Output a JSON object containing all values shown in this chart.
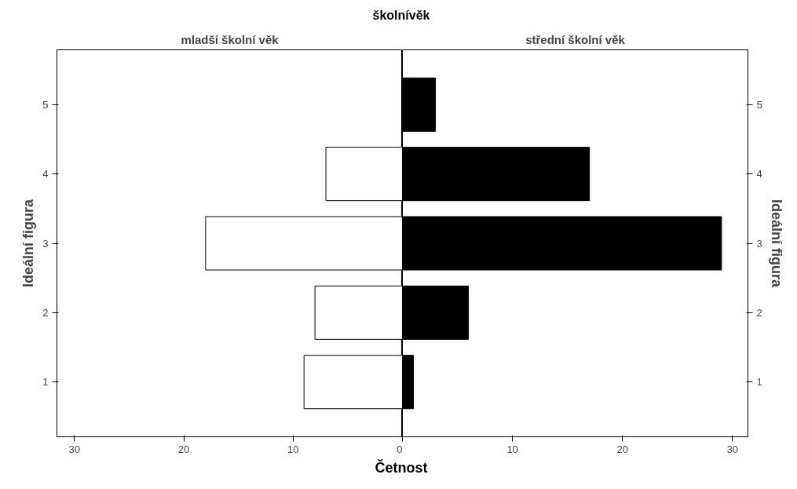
{
  "chart_data": [
    {
      "type": "bar",
      "orientation": "horizontal",
      "title": "mladší školní věk",
      "annotations": [
        "školnívěk"
      ],
      "xlabel": "Četnost",
      "ylabel": "Ideální figura",
      "categories": [
        "5",
        "4",
        "3",
        "2",
        "1"
      ],
      "values": [
        null,
        7,
        18,
        8,
        9
      ],
      "color": "#ffffff",
      "xlim": [
        31.6,
        0
      ],
      "xticks": [
        30,
        20,
        10,
        0
      ]
    },
    {
      "type": "bar",
      "orientation": "horizontal",
      "title": "střední školní věk",
      "y2label": "Ideální figura",
      "categories": [
        "5",
        "4",
        "3",
        "2",
        "1"
      ],
      "values": [
        3,
        17,
        29,
        6,
        1
      ],
      "color": "#000000",
      "xlim": [
        0,
        31.4
      ],
      "xticks": [
        {
          "value": 0,
          "label": null
        },
        10,
        20,
        30
      ]
    }
  ]
}
